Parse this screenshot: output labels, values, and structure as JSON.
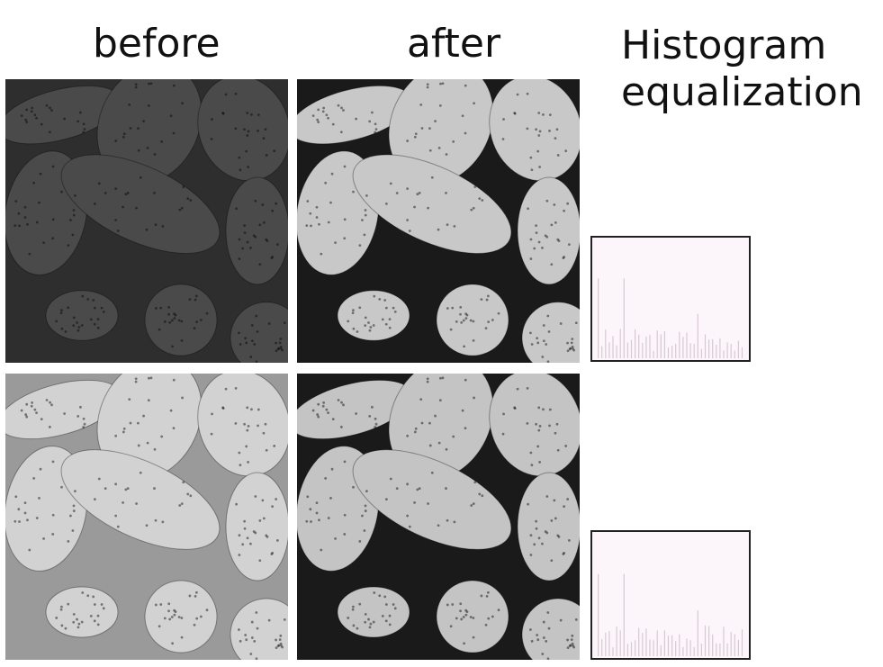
{
  "headings": {
    "before": "before",
    "after": "after",
    "histogram_line1": "Histogram",
    "histogram_line2": "equalization"
  },
  "panels": [
    {
      "row": "top",
      "column": "before",
      "tone": "dark",
      "fill": "#2e2e2e",
      "seed_fill": "#4a4a4a"
    },
    {
      "row": "top",
      "column": "after",
      "tone": "equalized",
      "fill": "#1a1a1a",
      "seed_fill": "#c8c8c8"
    },
    {
      "row": "bottom",
      "column": "before",
      "tone": "washed-out",
      "fill": "#9a9a9a",
      "seed_fill": "#d2d2d2"
    },
    {
      "row": "bottom",
      "column": "after",
      "tone": "equalized",
      "fill": "#1a1a1a",
      "seed_fill": "#c4c4c4"
    }
  ],
  "histogram_colors": {
    "background": "#fcf6fa",
    "bars": "#d8c8d4",
    "border": "#222222"
  }
}
